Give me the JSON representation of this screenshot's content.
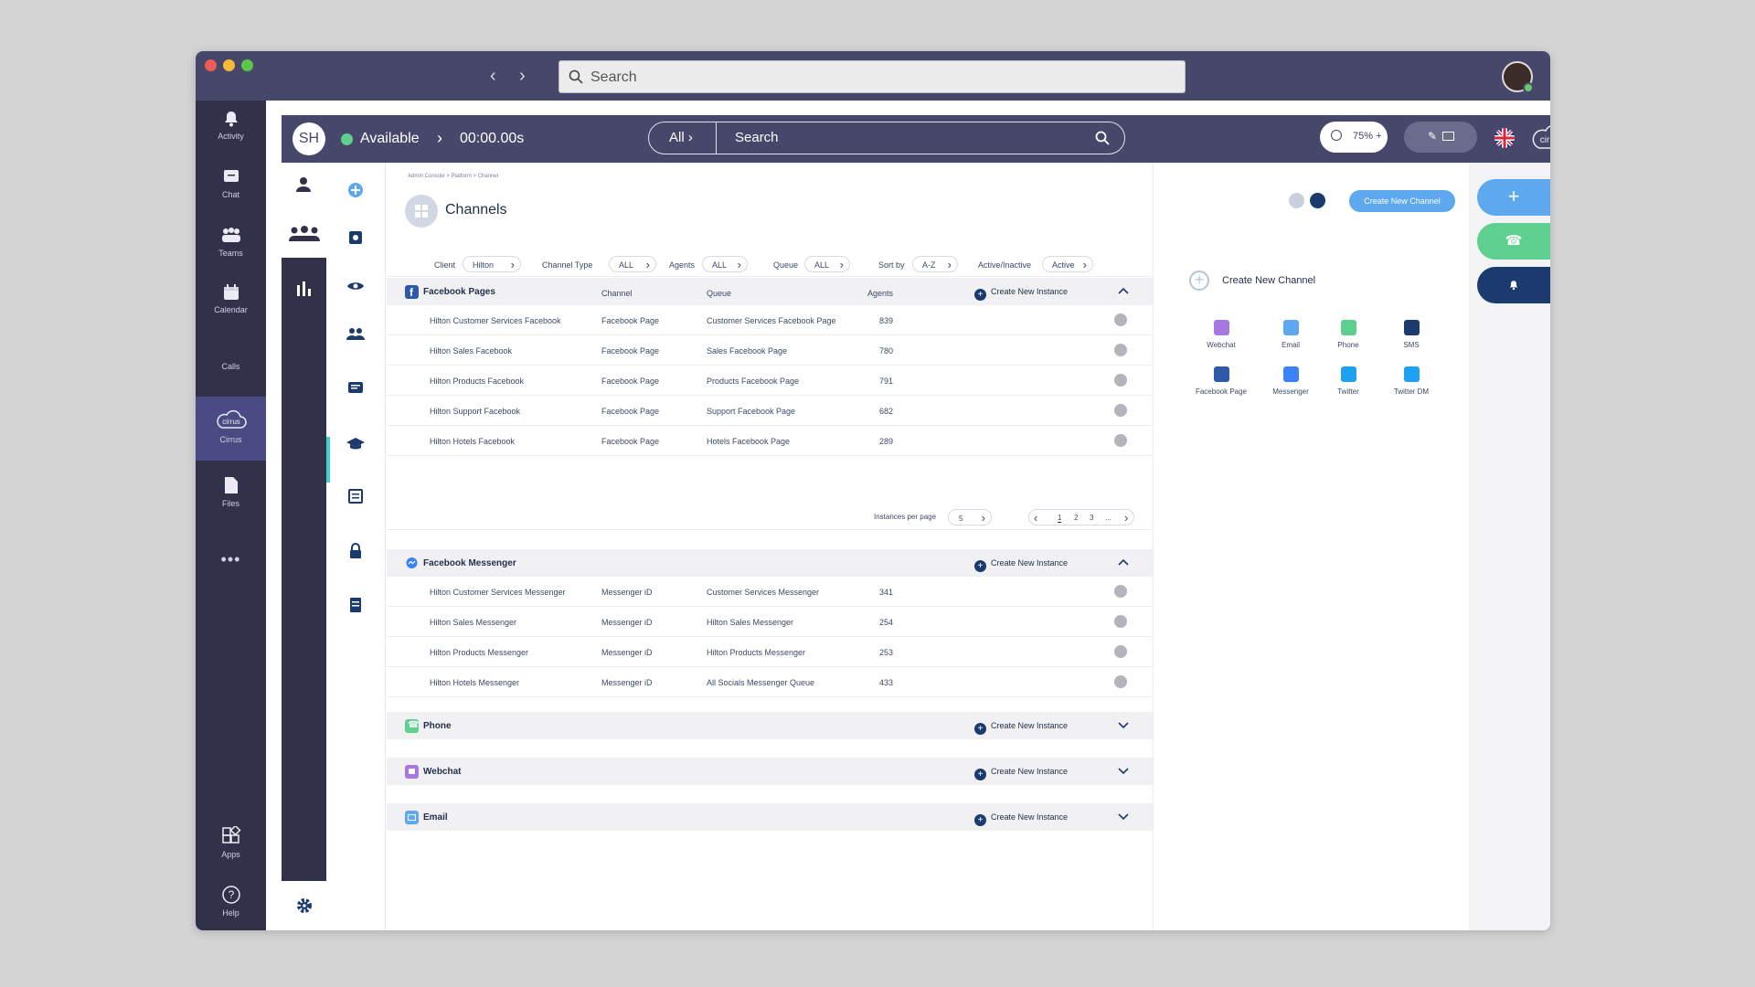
{
  "os": {
    "search_placeholder": "Search"
  },
  "teams_rail": [
    {
      "label": "Activity",
      "icon": "bell-icon"
    },
    {
      "label": "Chat",
      "icon": "chat-icon"
    },
    {
      "label": "Teams",
      "icon": "teams-icon"
    },
    {
      "label": "Calendar",
      "icon": "calendar-icon"
    },
    {
      "label": "Calls",
      "icon": "calls-icon"
    },
    {
      "label": "Cirrus",
      "icon": "cirrus-icon"
    },
    {
      "label": "Files",
      "icon": "files-icon"
    },
    {
      "label": "Apps",
      "icon": "apps-icon"
    },
    {
      "label": "Help",
      "icon": "help-icon"
    }
  ],
  "header": {
    "avatar_initials": "SH",
    "status": "Available",
    "timer": "00:00.00s",
    "search_scope": "All",
    "search_placeholder": "Search",
    "zoom": "75%",
    "logo_text": "cirrus"
  },
  "breadcrumb": "Admin Console > Platform > Channel",
  "page_title": "Channels",
  "create_channel_button": "Create New Channel",
  "filters": {
    "client_label": "Client",
    "client_value": "Hilton",
    "type_label": "Channel Type",
    "type_value": "ALL",
    "agents_label": "Agents",
    "agents_value": "ALL",
    "queue_label": "Queue",
    "queue_value": "ALL",
    "sort_label": "Sort by",
    "sort_value": "A-Z",
    "active_label": "Active/Inactive",
    "active_value": "Active"
  },
  "columns": {
    "channel": "Channel",
    "queue": "Queue",
    "agents": "Agents"
  },
  "create_instance": "Create New Instance",
  "facebook_pages": {
    "title": "Facebook Pages",
    "rows": [
      {
        "name": "Hilton Customer Services Facebook",
        "channel": "Facebook Page",
        "queue": "Customer Services Facebook Page",
        "agents": "839"
      },
      {
        "name": "Hilton Sales Facebook",
        "channel": "Facebook Page",
        "queue": "Sales Facebook Page",
        "agents": "780"
      },
      {
        "name": "Hilton Products Facebook",
        "channel": "Facebook Page",
        "queue": "Products Facebook Page",
        "agents": "791"
      },
      {
        "name": "Hilton Support Facebook",
        "channel": "Facebook Page",
        "queue": "Support Facebook Page",
        "agents": "682"
      },
      {
        "name": "Hilton Hotels Facebook",
        "channel": "Facebook Page",
        "queue": "Hotels Facebook Page",
        "agents": "289"
      }
    ]
  },
  "pagination": {
    "label": "Instances per page",
    "per_page": "5",
    "pages": [
      "1",
      "2",
      "3",
      "..."
    ]
  },
  "facebook_messenger": {
    "title": "Facebook Messenger",
    "rows": [
      {
        "name": "Hilton Customer Services Messenger",
        "channel": "Messenger iD",
        "queue": "Customer Services Messenger",
        "agents": "341"
      },
      {
        "name": "Hilton Sales Messenger",
        "channel": "Messenger iD",
        "queue": "Hilton Sales Messenger",
        "agents": "254"
      },
      {
        "name": "Hilton Products Messenger",
        "channel": "Messenger iD",
        "queue": "Hilton Products Messenger",
        "agents": "253"
      },
      {
        "name": "Hilton Hotels Messenger",
        "channel": "Messenger iD",
        "queue": "All Socials Messenger Queue",
        "agents": "433"
      }
    ]
  },
  "collapsed_sections": [
    {
      "title": "Phone",
      "color": "#5ecf8f"
    },
    {
      "title": "Webchat",
      "color": "#a779e0"
    },
    {
      "title": "Email",
      "color": "#5da8ee"
    }
  ],
  "right_panel": {
    "title": "Create New Channel",
    "channels": [
      {
        "label": "Webchat",
        "color": "#a779e0"
      },
      {
        "label": "Email",
        "color": "#5da8ee"
      },
      {
        "label": "Phone",
        "color": "#5ecf8f"
      },
      {
        "label": "SMS",
        "color": "#1b3b6f"
      },
      {
        "label": "Facebook Page",
        "color": "#2f5aa8"
      },
      {
        "label": "Messenger",
        "color": "#3b82f6"
      },
      {
        "label": "Twitter",
        "color": "#1da1f2"
      },
      {
        "label": "Twitter DM",
        "color": "#1da1f2"
      }
    ]
  },
  "colors": {
    "brand": "#46476a",
    "accent": "#5da8ee",
    "available": "#5ecf8f"
  }
}
